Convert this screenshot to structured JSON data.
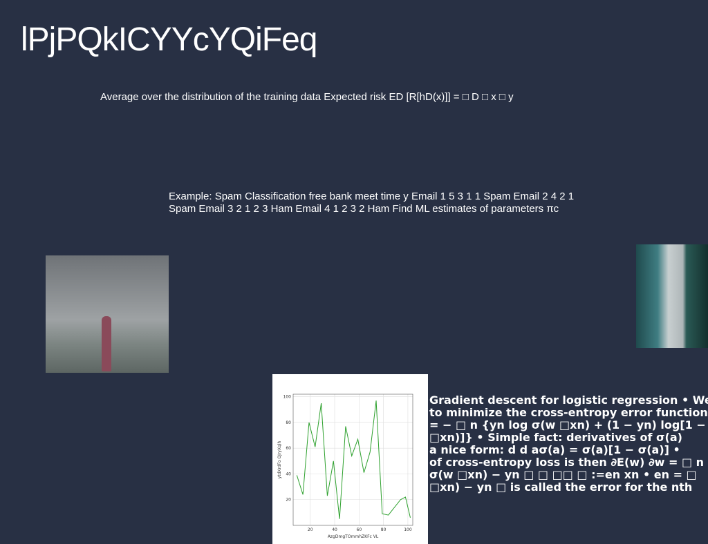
{
  "title": "lPjPQkICYYcYQiFeq",
  "text_1": "Average over the distribution of the training data Expected risk ED [R[hD(x)]] = □ D □ x □ y",
  "text_2": "Example: Spam Classification free bank meet time y Email 1 5 3 1 1 Spam Email 2 4 2 1 Spam Email 3 2 1 2 3 Ham Email 4 1 2 3 2 Ham Find ML estimates of parameters πc",
  "text_3": [
    "Gradient descent for logistic regression • We",
    "to minimize the cross-entropy error function:",
    "= − □ n {yn log σ(w □xn) + (1 − yn) log[1 −",
    "□xn)]} • Simple fact: derivatives of σ(a)",
    "a nice form: d d aσ(a) = σ(a)[1 − σ(a)] •",
    "of cross-entropy loss is then ∂E(w) ∂w = □ n",
    "σ(w □xn) − yn □ □ □□ □ :=en xn • en = □",
    "□xn) − yn □ is called the error for the nth"
  ],
  "chart_data": {
    "type": "line",
    "xlabel": "AzgDmgTOmmhZKFc VL",
    "ylabel": "ytdXrdFo OJryXqlh",
    "x": [
      9,
      14,
      19,
      24,
      29,
      34,
      39,
      44,
      49,
      54,
      59,
      64,
      69,
      74,
      79,
      84,
      94,
      98,
      102
    ],
    "values": [
      39,
      24,
      80,
      61,
      95,
      23,
      50,
      5,
      77,
      54,
      67,
      41,
      57,
      97,
      9,
      8,
      20,
      22,
      6
    ],
    "color": "#2ca02c",
    "xlim": [
      6,
      104
    ],
    "ylim": [
      0,
      102
    ],
    "xticks": [
      20,
      40,
      60,
      80,
      100
    ],
    "yticks": [
      20,
      40,
      60,
      80,
      100
    ],
    "grid": true
  }
}
